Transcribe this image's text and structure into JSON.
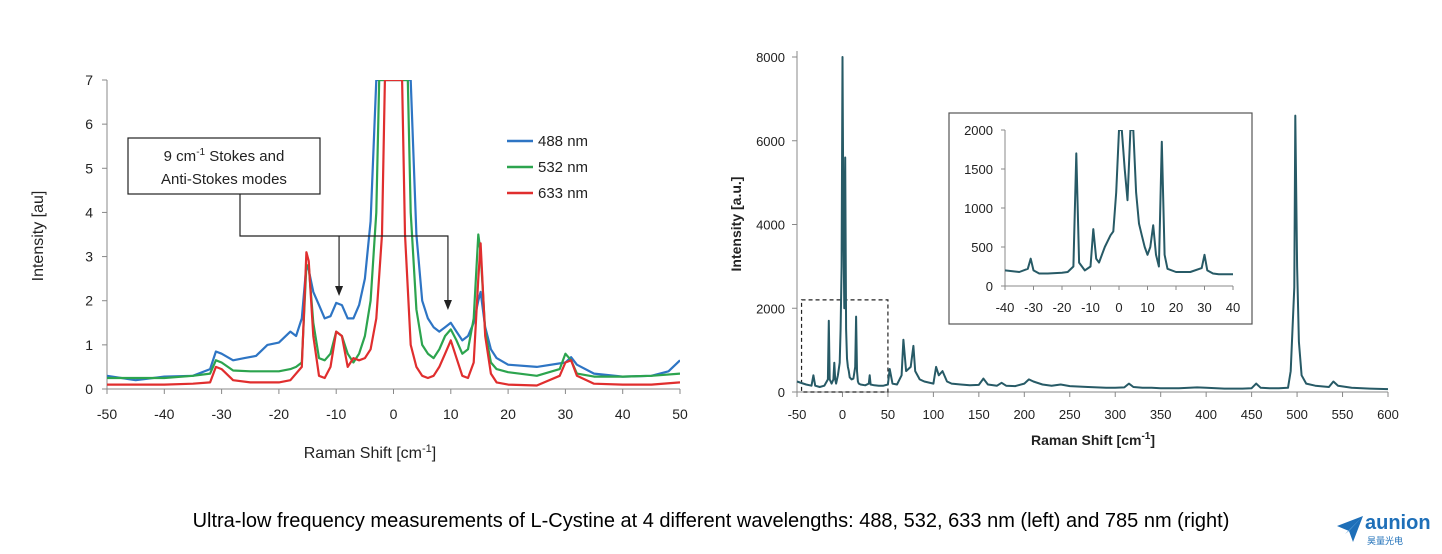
{
  "caption": "Ultra-low frequency measurements of L-Cystine at 4 different wavelengths: 488, 532, 633 nm (left) and 785 nm (right)",
  "logo": {
    "name": "aunion",
    "sub": "昊量光电",
    "color": "#1e6fb8"
  },
  "chart_data": [
    {
      "type": "line",
      "xlabel": "Raman Shift [cm",
      "xlabel_sup": "-1",
      "xlabel_end": "]",
      "ylabel": "Intensity [au]",
      "xlim": [
        -50,
        50
      ],
      "ylim": [
        0,
        7
      ],
      "xticks": [
        "-50",
        "-40",
        "-30",
        "-20",
        "-10",
        "0",
        "10",
        "20",
        "30",
        "40",
        "50"
      ],
      "yticks": [
        "0",
        "1",
        "2",
        "3",
        "4",
        "5",
        "6",
        "7"
      ],
      "legend_position": "top-right",
      "annotation": {
        "line1_a": "9 cm",
        "line1_sup": "-1",
        "line1_b": " Stokes and",
        "line2": "Anti-Stokes modes",
        "targets_x": [
          -9.5,
          9.5
        ]
      },
      "series": [
        {
          "name": "488 nm",
          "color": "#2e75c4",
          "x": [
            -50,
            -45,
            -40,
            -35,
            -32,
            -31,
            -30,
            -28,
            -26,
            -24,
            -22,
            -20,
            -18,
            -17,
            -16,
            -15.2,
            -14.8,
            -14,
            -13,
            -12,
            -11,
            -10,
            -9,
            -8,
            -7,
            -6,
            -5,
            -4,
            -3,
            -2.5,
            -2,
            2,
            2.5,
            3,
            4,
            5,
            6,
            7,
            8,
            9,
            10,
            11,
            12,
            13,
            14,
            14.8,
            15.2,
            16,
            17,
            18,
            20,
            25,
            30,
            31,
            32,
            35,
            40,
            45,
            48,
            50
          ],
          "y": [
            0.3,
            0.2,
            0.28,
            0.3,
            0.45,
            0.85,
            0.8,
            0.65,
            0.7,
            0.75,
            1.0,
            1.05,
            1.3,
            1.2,
            1.6,
            2.8,
            2.7,
            2.2,
            1.9,
            1.6,
            1.65,
            1.95,
            1.9,
            1.6,
            1.6,
            1.9,
            2.5,
            3.8,
            7.0,
            7.0,
            7.0,
            7.0,
            7.0,
            7.0,
            3.5,
            2.0,
            1.6,
            1.4,
            1.3,
            1.4,
            1.5,
            1.3,
            1.1,
            1.2,
            1.5,
            2.0,
            2.2,
            1.4,
            0.9,
            0.7,
            0.55,
            0.5,
            0.6,
            0.72,
            0.55,
            0.35,
            0.28,
            0.3,
            0.4,
            0.65
          ]
        },
        {
          "name": "532 nm",
          "color": "#2ca44e",
          "x": [
            -50,
            -40,
            -35,
            -32,
            -31,
            -30,
            -28,
            -25,
            -20,
            -18,
            -17,
            -16,
            -15.2,
            -14.8,
            -14,
            -13,
            -12,
            -11,
            -10,
            -9,
            -8,
            -7,
            -6,
            -5,
            -4,
            -3,
            -2.5,
            2.5,
            3,
            4,
            5,
            6,
            7,
            8,
            9,
            10,
            11,
            12,
            13,
            14,
            14.8,
            15.2,
            16,
            17,
            18,
            20,
            25,
            29,
            30,
            31,
            32,
            35,
            40,
            45,
            50
          ],
          "y": [
            0.25,
            0.25,
            0.3,
            0.35,
            0.65,
            0.6,
            0.42,
            0.4,
            0.4,
            0.45,
            0.5,
            0.6,
            2.8,
            2.8,
            1.5,
            0.7,
            0.65,
            0.8,
            1.3,
            1.2,
            0.8,
            0.6,
            0.8,
            1.2,
            2.0,
            4.0,
            7.0,
            7.0,
            4.0,
            1.8,
            1.0,
            0.8,
            0.7,
            0.9,
            1.2,
            1.35,
            1.1,
            0.8,
            0.9,
            1.6,
            3.5,
            3.1,
            1.3,
            0.6,
            0.45,
            0.38,
            0.3,
            0.45,
            0.8,
            0.65,
            0.35,
            0.28,
            0.28,
            0.3,
            0.35
          ]
        },
        {
          "name": "633 nm",
          "color": "#e02e2e",
          "x": [
            -50,
            -40,
            -35,
            -32,
            -31,
            -30,
            -28,
            -25,
            -20,
            -18,
            -16,
            -15.2,
            -14.8,
            -14,
            -13,
            -12,
            -11,
            -10,
            -9,
            -8,
            -7,
            -6,
            -5,
            -4,
            -3,
            -2,
            -1.5,
            1.5,
            2,
            3,
            4,
            5,
            6,
            7,
            8,
            9,
            10,
            11,
            12,
            13,
            14,
            14.8,
            15.2,
            16,
            17,
            18,
            20,
            25,
            29,
            30,
            31,
            32,
            35,
            40,
            45,
            50
          ],
          "y": [
            0.1,
            0.1,
            0.12,
            0.15,
            0.5,
            0.45,
            0.2,
            0.15,
            0.15,
            0.2,
            0.5,
            3.1,
            2.9,
            1.2,
            0.3,
            0.25,
            0.5,
            1.3,
            1.2,
            0.5,
            0.7,
            0.65,
            0.7,
            0.9,
            1.6,
            3.5,
            7.0,
            7.0,
            3.5,
            1.0,
            0.5,
            0.3,
            0.25,
            0.3,
            0.5,
            0.8,
            1.1,
            0.7,
            0.3,
            0.25,
            0.6,
            2.5,
            3.3,
            1.2,
            0.35,
            0.15,
            0.1,
            0.08,
            0.3,
            0.6,
            0.65,
            0.3,
            0.12,
            0.1,
            0.1,
            0.15
          ]
        }
      ]
    },
    {
      "type": "line",
      "xlabel": "Raman Shift [cm",
      "xlabel_sup": "-1",
      "xlabel_end": "]",
      "ylabel": "Intensity [a.u.]",
      "xlim": [
        -50,
        600
      ],
      "ylim": [
        0,
        8000
      ],
      "xticks": [
        "-50",
        "0",
        "50",
        "100",
        "150",
        "200",
        "250",
        "300",
        "350",
        "400",
        "450",
        "500",
        "550",
        "600"
      ],
      "yticks": [
        "0",
        "2000",
        "4000",
        "6000",
        "8000"
      ],
      "color": "#275a66",
      "highlight_box": {
        "x": [
          -45,
          50
        ],
        "y": [
          0,
          2200
        ]
      },
      "series": [
        {
          "name": "",
          "x": [
            -50,
            -40,
            -34,
            -32,
            -30,
            -25,
            -20,
            -16,
            -15,
            -14,
            -12,
            -10,
            -9,
            -8,
            -7,
            -5,
            -3,
            -2,
            -1,
            0,
            1,
            2,
            3,
            4,
            5,
            6,
            7,
            8,
            10,
            12,
            14,
            15,
            16,
            17,
            18,
            20,
            25,
            29,
            30,
            31,
            35,
            40,
            45,
            50,
            52,
            55,
            60,
            65,
            67,
            70,
            75,
            78,
            80,
            85,
            90,
            100,
            103,
            106,
            110,
            115,
            120,
            130,
            140,
            150,
            155,
            160,
            170,
            175,
            180,
            190,
            200,
            205,
            210,
            220,
            230,
            240,
            250,
            270,
            290,
            300,
            310,
            315,
            320,
            330,
            340,
            350,
            370,
            390,
            400,
            420,
            440,
            450,
            455,
            460,
            470,
            480,
            490,
            493,
            495,
            497,
            498,
            500,
            502,
            505,
            510,
            520,
            535,
            540,
            545,
            560,
            580,
            600
          ],
          "y": [
            250,
            180,
            150,
            400,
            150,
            120,
            150,
            300,
            1700,
            300,
            200,
            300,
            700,
            300,
            200,
            400,
            700,
            1500,
            3000,
            8000,
            4000,
            2000,
            5600,
            1500,
            800,
            600,
            500,
            350,
            300,
            320,
            600,
            1800,
            500,
            250,
            200,
            180,
            160,
            200,
            400,
            180,
            160,
            150,
            150,
            180,
            550,
            200,
            180,
            400,
            1250,
            500,
            600,
            1100,
            500,
            300,
            250,
            200,
            600,
            400,
            500,
            250,
            200,
            180,
            160,
            170,
            320,
            180,
            150,
            220,
            150,
            140,
            200,
            300,
            250,
            180,
            150,
            180,
            140,
            120,
            100,
            100,
            110,
            200,
            120,
            100,
            100,
            90,
            90,
            110,
            100,
            80,
            80,
            90,
            200,
            100,
            90,
            90,
            100,
            500,
            1500,
            2500,
            6600,
            3000,
            1200,
            400,
            200,
            150,
            120,
            250,
            150,
            100,
            80,
            70
          ]
        }
      ],
      "inset": {
        "xlim": [
          -40,
          40
        ],
        "ylim": [
          0,
          2000
        ],
        "xticks": [
          "-40",
          "-30",
          "-20",
          "-10",
          "0",
          "10",
          "20",
          "30",
          "40"
        ],
        "yticks": [
          "0",
          "500",
          "1000",
          "1500",
          "2000"
        ],
        "x": [
          -40,
          -35,
          -32,
          -31,
          -30,
          -28,
          -25,
          -20,
          -18,
          -16,
          -15,
          -14,
          -12,
          -10,
          -9,
          -8,
          -7,
          -5,
          -3,
          -2,
          -1,
          0,
          1,
          2,
          3,
          4,
          5,
          6,
          7,
          8,
          9,
          10,
          11,
          12,
          13,
          14,
          15,
          16,
          17,
          20,
          25,
          29,
          30,
          31,
          33,
          35,
          40
        ],
        "y": [
          200,
          180,
          220,
          350,
          200,
          160,
          160,
          170,
          180,
          250,
          1700,
          300,
          200,
          250,
          730,
          350,
          300,
          500,
          650,
          700,
          1200,
          2000,
          2000,
          1500,
          1100,
          2000,
          2000,
          1200,
          800,
          650,
          500,
          400,
          500,
          780,
          400,
          250,
          1850,
          400,
          220,
          180,
          180,
          230,
          400,
          200,
          160,
          150,
          150
        ]
      }
    }
  ]
}
